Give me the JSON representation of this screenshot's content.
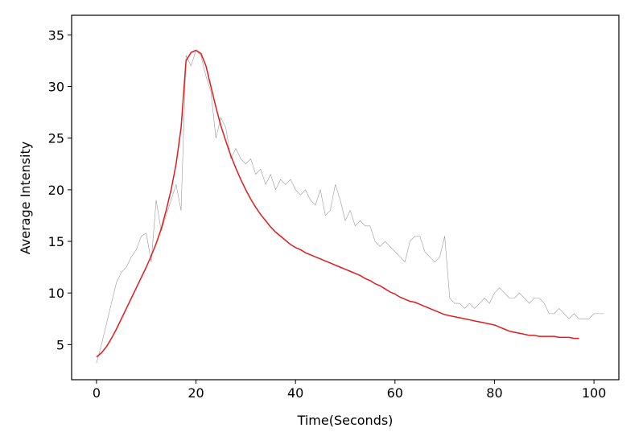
{
  "chart_data": {
    "type": "line",
    "xlabel": "Time(Seconds)",
    "ylabel": "Average Intensity",
    "x": [
      0,
      1,
      2,
      3,
      4,
      5,
      6,
      7,
      8,
      9,
      10,
      11,
      12,
      13,
      14,
      15,
      16,
      17,
      18,
      19,
      20,
      21,
      22,
      23,
      24,
      25,
      26,
      27,
      28,
      29,
      30,
      31,
      32,
      33,
      34,
      35,
      36,
      37,
      38,
      39,
      40,
      41,
      42,
      43,
      44,
      45,
      46,
      47,
      48,
      49,
      50,
      51,
      52,
      53,
      54,
      55,
      56,
      57,
      58,
      59,
      60,
      61,
      62,
      63,
      64,
      65,
      66,
      67,
      68,
      69,
      70,
      71,
      72,
      73,
      74,
      75,
      76,
      77,
      78,
      79,
      80,
      81,
      82,
      83,
      84,
      85,
      86,
      87,
      88,
      89,
      90,
      91,
      92,
      93,
      94,
      95,
      96,
      97,
      98,
      99,
      100,
      101,
      102
    ],
    "series": [
      {
        "color": "#999999",
        "width": 0.6,
        "values": [
          3.2,
          5,
          7,
          9,
          11,
          12,
          12.5,
          13.5,
          14.2,
          15.5,
          15.8,
          13,
          19,
          16,
          17.5,
          19,
          20.5,
          18,
          33,
          32,
          33.5,
          33,
          31,
          29.5,
          25,
          27,
          26,
          23,
          24,
          23,
          22.5,
          23,
          21.5,
          22,
          20.5,
          21.5,
          20,
          21,
          20.5,
          21,
          20,
          19.5,
          20,
          19,
          18.5,
          20,
          17.5,
          18,
          20.5,
          19,
          17,
          18,
          16.5,
          17,
          16.5,
          16.5,
          15,
          14.5,
          15,
          14.5,
          14,
          13.5,
          13,
          15,
          15.5,
          15.5,
          14,
          13.5,
          13,
          13.5,
          15.5,
          9.5,
          9,
          9,
          8.5,
          9,
          8.5,
          9,
          9.5,
          9,
          10,
          10.5,
          10,
          9.5,
          9.5,
          10,
          9.5,
          9,
          9.5,
          9.5,
          9,
          8,
          8,
          8.5,
          8,
          7.5,
          8,
          7.5,
          7.5,
          7.5,
          8,
          8,
          8
        ]
      },
      {
        "color": "#e31a1c",
        "width": 1.5,
        "values": [
          3.8,
          4.2,
          4.8,
          5.6,
          6.5,
          7.5,
          8.5,
          9.5,
          10.5,
          11.5,
          12.5,
          13.6,
          14.8,
          16.2,
          18,
          20,
          22.5,
          26,
          32.5,
          33.3,
          33.5,
          33.2,
          32,
          30,
          28,
          26.2,
          24.7,
          23.3,
          22.1,
          21,
          20,
          19.1,
          18.3,
          17.6,
          17,
          16.4,
          15.9,
          15.5,
          15.1,
          14.7,
          14.4,
          14.2,
          13.9,
          13.7,
          13.5,
          13.3,
          13.1,
          12.9,
          12.7,
          12.5,
          12.3,
          12.1,
          11.9,
          11.7,
          11.4,
          11.2,
          10.9,
          10.7,
          10.4,
          10.1,
          9.9,
          9.6,
          9.4,
          9.2,
          9.1,
          8.9,
          8.7,
          8.5,
          8.3,
          8.1,
          7.9,
          7.8,
          7.7,
          7.6,
          7.5,
          7.4,
          7.3,
          7.2,
          7.1,
          7,
          6.9,
          6.7,
          6.5,
          6.3,
          6.2,
          6.1,
          6,
          5.9,
          5.9,
          5.8,
          5.8,
          5.8,
          5.8,
          5.7,
          5.7,
          5.7,
          5.6,
          5.6,
          null,
          null,
          null,
          null,
          null
        ]
      }
    ],
    "xlim": [
      -5,
      105
    ],
    "ylim": [
      1.6,
      36.9
    ],
    "xticks": [
      0,
      20,
      40,
      60,
      80,
      100
    ],
    "yticks": [
      5,
      10,
      15,
      20,
      25,
      30,
      35
    ]
  }
}
